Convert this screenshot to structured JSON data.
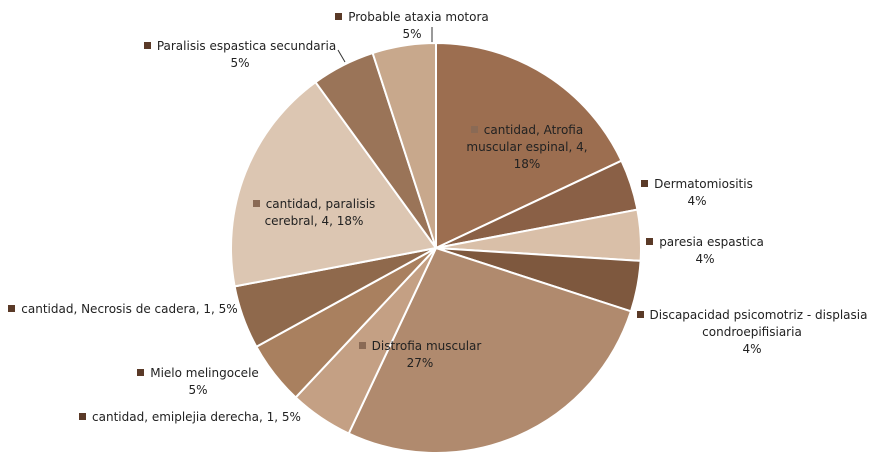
{
  "chart_data": {
    "type": "pie",
    "categories": [
      "cantidad, Atrofia muscular espinal, 4,",
      "Dermatomiositis",
      "paresia espastica",
      "Discapacidad psicomotriz - displasia condroepifisiaria",
      "Distrofia muscular",
      "cantidad, emiplejia derecha, 1,",
      "Mielo melingocele",
      "cantidad, Necrosis de cadera, 1,",
      "cantidad, paralisis cerebral, 4,",
      "Paralisis espastica secundaria",
      "Probable ataxia motora"
    ],
    "values": [
      18,
      4,
      4,
      4,
      27,
      5,
      5,
      5,
      18,
      5,
      5
    ],
    "value_labels": [
      "18%",
      "4%",
      "4%",
      "4%",
      "27%",
      "5%",
      "5%",
      "5%",
      "18%",
      "5%",
      "5%"
    ],
    "colors": [
      "#9c6e50",
      "#8a6046",
      "#d9bfa8",
      "#7e583e",
      "#b08a6e",
      "#c4a084",
      "#a9805f",
      "#8f694c",
      "#dcc6b2",
      "#9a7458",
      "#c8a88c"
    ]
  }
}
